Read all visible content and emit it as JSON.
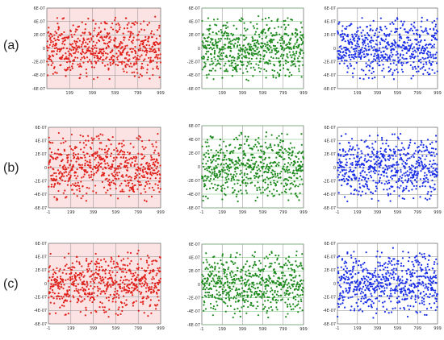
{
  "row_labels": [
    "(a)",
    "(b)",
    "(c)"
  ],
  "colors": {
    "red": "#e0201a",
    "green": "#1e8a1e",
    "blue": "#1a2fe6",
    "red_bg": "#fbe3e3",
    "grid": "#8a8a8a",
    "axis": "#555555"
  },
  "chart_data": [
    {
      "type": "scatter",
      "row": "(a)",
      "color": "red",
      "seed": 11,
      "spread": 4e-07,
      "x_ticks": [
        "199",
        "399",
        "599",
        "799",
        "999"
      ],
      "y_ticks": [
        "6E-07",
        "4E-07",
        "2E-07",
        "0",
        "-2E-07",
        "-4E-07",
        "-6E-07"
      ],
      "xlim": [
        -1,
        999
      ],
      "ylim": [
        -6e-07,
        6e-07
      ],
      "grid": true
    },
    {
      "type": "scatter",
      "row": "(a)",
      "color": "green",
      "seed": 23,
      "spread": 4.2e-07,
      "x_ticks": [
        "199",
        "399",
        "599",
        "799",
        "999"
      ],
      "y_ticks": [
        "6E-07",
        "4E-07",
        "2E-07",
        "0",
        "-2E-07",
        "-4E-07",
        "-6E-07"
      ],
      "xlim": [
        -1,
        999
      ],
      "ylim": [
        -6e-07,
        6e-07
      ],
      "grid": true
    },
    {
      "type": "scatter",
      "row": "(a)",
      "color": "blue",
      "seed": 37,
      "spread": 4e-07,
      "x_ticks": [
        "199",
        "399",
        "599",
        "799",
        "999"
      ],
      "y_ticks": [
        "6E-07",
        "4E-07",
        "2E-07",
        "0",
        "-2E-07",
        "-4E-07",
        "-6E-07"
      ],
      "xlim": [
        -1,
        999
      ],
      "ylim": [
        -6e-07,
        6e-07
      ],
      "grid": true
    },
    {
      "type": "scatter",
      "row": "(b)",
      "color": "red",
      "seed": 41,
      "spread": 4.4e-07,
      "x_ticks": [
        "-1",
        "199",
        "399",
        "599",
        "799",
        "999"
      ],
      "y_ticks": [
        "6E-07",
        "4E-07",
        "2E-07",
        "0",
        "-2E-07",
        "-4E-07",
        "-6E-07"
      ],
      "xlim": [
        -1,
        999
      ],
      "ylim": [
        -6e-07,
        6e-07
      ],
      "grid": true
    },
    {
      "type": "scatter",
      "row": "(b)",
      "color": "green",
      "seed": 53,
      "spread": 4.4e-07,
      "x_ticks": [
        "-1",
        "199",
        "399",
        "599",
        "799",
        "999"
      ],
      "y_ticks": [
        "6E-07",
        "4E-07",
        "2E-07",
        "0",
        "-2E-07",
        "-4E-07",
        "-6E-07"
      ],
      "xlim": [
        -1,
        999
      ],
      "ylim": [
        -6e-07,
        6e-07
      ],
      "grid": true
    },
    {
      "type": "scatter",
      "row": "(b)",
      "color": "blue",
      "seed": 67,
      "spread": 4.4e-07,
      "x_ticks": [
        "-1",
        "199",
        "399",
        "599",
        "799",
        "999"
      ],
      "y_ticks": [
        "6E-07",
        "4E-07",
        "2E-07",
        "0",
        "-2E-07",
        "-4E-07",
        "-6E-07"
      ],
      "xlim": [
        -1,
        999
      ],
      "ylim": [
        -6e-07,
        6e-07
      ],
      "grid": true
    },
    {
      "type": "scatter",
      "row": "(c)",
      "color": "red",
      "seed": 71,
      "spread": 4.3e-07,
      "x_ticks": [
        "-1",
        "199",
        "399",
        "599",
        "799",
        "999"
      ],
      "y_ticks": [
        "6E-07",
        "4E-07",
        "2E-07",
        "0",
        "-2E-07",
        "-4E-07",
        "-6E-07"
      ],
      "xlim": [
        -1,
        999
      ],
      "ylim": [
        -6e-07,
        6e-07
      ],
      "grid": true
    },
    {
      "type": "scatter",
      "row": "(c)",
      "color": "green",
      "seed": 83,
      "spread": 4.3e-07,
      "x_ticks": [
        "-1",
        "199",
        "399",
        "599",
        "799",
        "999"
      ],
      "y_ticks": [
        "6E-07",
        "4E-07",
        "2E-07",
        "0",
        "-2E-07",
        "-4E-07",
        "-6E-07"
      ],
      "xlim": [
        -1,
        999
      ],
      "ylim": [
        -6e-07,
        6e-07
      ],
      "grid": true
    },
    {
      "type": "scatter",
      "row": "(c)",
      "color": "blue",
      "seed": 97,
      "spread": 4.3e-07,
      "x_ticks": [
        "-1",
        "199",
        "399",
        "599",
        "799",
        "999"
      ],
      "y_ticks": [
        "6E-07",
        "4E-07",
        "2E-07",
        "0",
        "-2E-07",
        "-4E-07",
        "-6E-07"
      ],
      "xlim": [
        -1,
        999
      ],
      "ylim": [
        -6e-07,
        6e-07
      ],
      "grid": true
    }
  ]
}
